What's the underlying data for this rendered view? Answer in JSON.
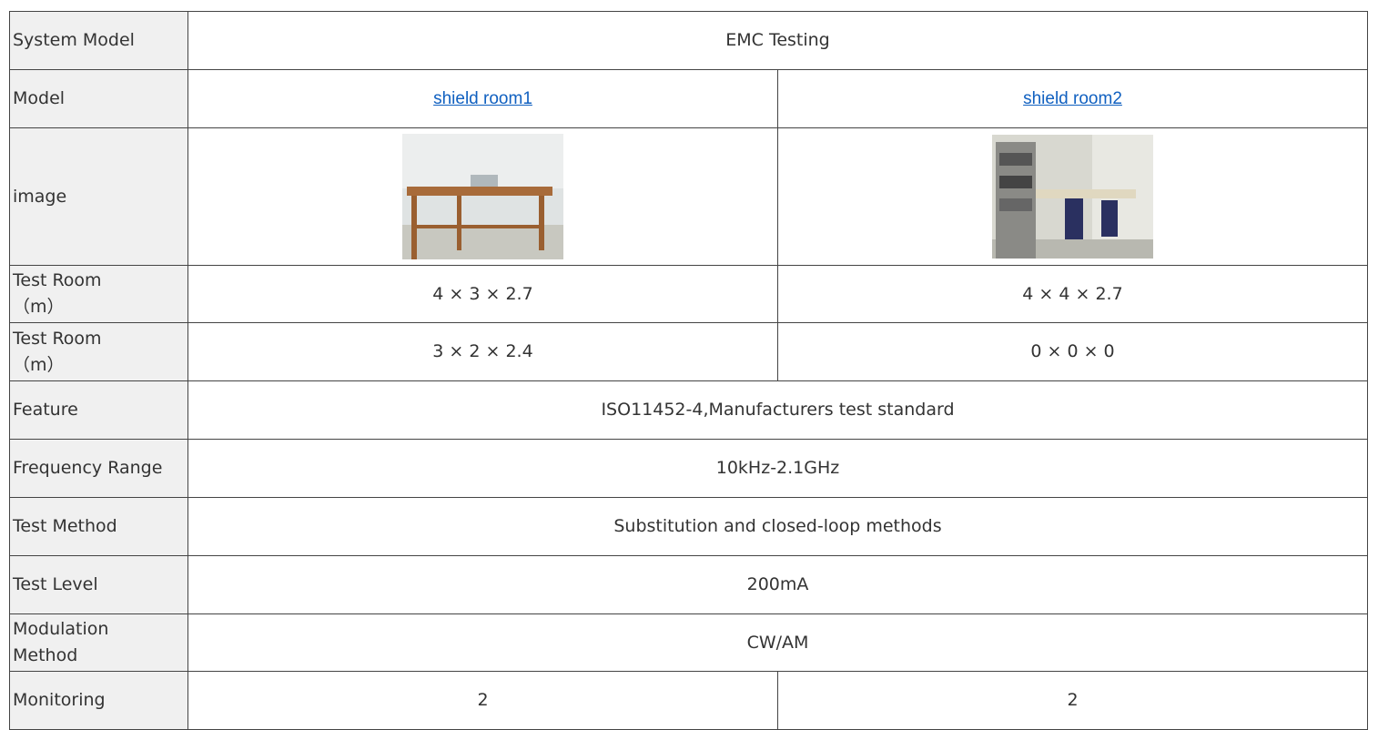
{
  "table": {
    "rows": [
      {
        "label": "System Model",
        "cells": [
          "EMC Testing"
        ]
      },
      {
        "label": "Model",
        "cells": [
          "shield room1",
          "shield room2"
        ]
      },
      {
        "label": "image",
        "cells": []
      },
      {
        "label": "Test Room\n（m）",
        "cells": [
          "4 × 3 × 2.7",
          "4 × 4 × 2.7"
        ]
      },
      {
        "label": "Test Room\n（m）",
        "cells": [
          "3 × 2 × 2.4",
          "0 × 0 × 0"
        ]
      },
      {
        "label": "Feature",
        "cells": [
          "ISO11452-4,Manufacturers test standard"
        ]
      },
      {
        "label": "Frequency Range",
        "cells": [
          "10kHz-2.1GHz"
        ]
      },
      {
        "label": "Test Method",
        "cells": [
          "Substitution and closed-loop methods"
        ]
      },
      {
        "label": "Test Level",
        "cells": [
          "200mA"
        ]
      },
      {
        "label": "Modulation\nMethod",
        "cells": [
          "CW/AM"
        ]
      },
      {
        "label": "Monitoring",
        "cells": [
          "2",
          "2"
        ]
      }
    ]
  }
}
